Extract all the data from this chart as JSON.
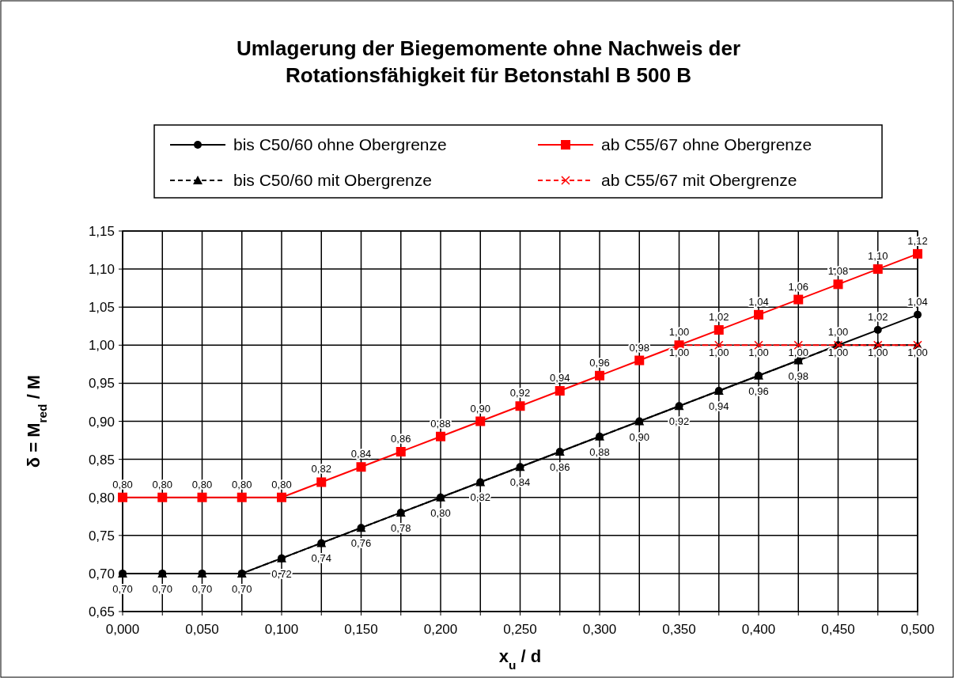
{
  "chart_data": {
    "type": "line",
    "title": "Umlagerung der Biegemomente ohne Nachweis der Rotationsfähigkeit für Betonstahl B 500 B",
    "xlabel": "x$_{u}$ / d",
    "ylabel": "δ = M$_{red}$ / M",
    "x": [
      0,
      0.025,
      0.05,
      0.075,
      0.1,
      0.125,
      0.15,
      0.175,
      0.2,
      0.225,
      0.25,
      0.275,
      0.3,
      0.325,
      0.35,
      0.375,
      0.4,
      0.425,
      0.45,
      0.475,
      0.5
    ],
    "series": [
      {
        "name": "bis C50/60 ohne Obergrenze",
        "color": "#000000",
        "marker": "circle",
        "line_style": "solid",
        "values": [
          0.7,
          0.7,
          0.7,
          0.7,
          0.72,
          0.74,
          0.76,
          0.78,
          0.8,
          0.82,
          0.84,
          0.86,
          0.88,
          0.9,
          0.92,
          0.94,
          0.96,
          0.98,
          1.0,
          1.02,
          1.04
        ],
        "value_labels": [
          "0,70",
          "0,70",
          "0,70",
          "0,70",
          "0,72",
          "0,74",
          "0,76",
          "0,78",
          "0,80",
          "0,82",
          "0,84",
          "0,86",
          "0,88",
          "0,90",
          "0,92",
          "0,94",
          "0,96",
          "0,98",
          "1,00",
          "1,02",
          "1,04"
        ]
      },
      {
        "name": "ab C55/67 ohne Obergrenze",
        "color": "#ff0000",
        "marker": "square",
        "line_style": "solid",
        "values": [
          0.8,
          0.8,
          0.8,
          0.8,
          0.8,
          0.82,
          0.84,
          0.86,
          0.88,
          0.9,
          0.92,
          0.94,
          0.96,
          0.98,
          1.0,
          1.02,
          1.04,
          1.06,
          1.08,
          1.1,
          1.12
        ],
        "value_labels": [
          "0,80",
          "0,80",
          "0,80",
          "0,80",
          "0,80",
          "0,82",
          "0,84",
          "0,86",
          "0,88",
          "0,90",
          "0,92",
          "0,94",
          "0,96",
          "0,98",
          "1,00",
          "1,02",
          "1,04",
          "1,06",
          "1,08",
          "1,10",
          "1,12"
        ]
      },
      {
        "name": "bis C50/60 mit Obergrenze",
        "color": "#000000",
        "marker": "triangle",
        "line_style": "dashed",
        "values": [
          0.7,
          0.7,
          0.7,
          0.7,
          0.72,
          0.74,
          0.76,
          0.78,
          0.8,
          0.82,
          0.84,
          0.86,
          0.88,
          0.9,
          0.92,
          0.94,
          0.96,
          0.98,
          1.0,
          1.0,
          1.0
        ]
      },
      {
        "name": "ab C55/67 mit Obergrenze",
        "color": "#ff0000",
        "marker": "cross",
        "line_style": "dashed",
        "values": [
          null,
          null,
          null,
          null,
          null,
          null,
          null,
          null,
          null,
          null,
          null,
          null,
          null,
          null,
          1.0,
          1.0,
          1.0,
          1.0,
          1.0,
          1.0,
          1.0
        ],
        "value_labels": [
          null,
          null,
          null,
          null,
          null,
          null,
          null,
          null,
          null,
          null,
          null,
          null,
          null,
          null,
          "1,00",
          "1,00",
          "1,00",
          "1,00",
          "1,00",
          "1,00",
          "1,00"
        ]
      }
    ],
    "xlim": [
      0,
      0.5
    ],
    "xticks": [
      {
        "value": 0,
        "label": "0,000"
      },
      {
        "value": 0.025,
        "label": null
      },
      {
        "value": 0.05,
        "label": "0,050"
      },
      {
        "value": 0.075,
        "label": null
      },
      {
        "value": 0.1,
        "label": "0,100"
      },
      {
        "value": 0.125,
        "label": null
      },
      {
        "value": 0.15,
        "label": "0,150"
      },
      {
        "value": 0.175,
        "label": null
      },
      {
        "value": 0.2,
        "label": "0,200"
      },
      {
        "value": 0.225,
        "label": null
      },
      {
        "value": 0.25,
        "label": "0,250"
      },
      {
        "value": 0.275,
        "label": null
      },
      {
        "value": 0.3,
        "label": "0,300"
      },
      {
        "value": 0.325,
        "label": null
      },
      {
        "value": 0.35,
        "label": "0,350"
      },
      {
        "value": 0.375,
        "label": null
      },
      {
        "value": 0.4,
        "label": "0,400"
      },
      {
        "value": 0.425,
        "label": null
      },
      {
        "value": 0.45,
        "label": "0,450"
      },
      {
        "value": 0.475,
        "label": null
      },
      {
        "value": 0.5,
        "label": "0,500"
      }
    ],
    "ylim": [
      0.65,
      1.15
    ],
    "yticks": [
      {
        "value": 0.65,
        "label": "0,65"
      },
      {
        "value": 0.7,
        "label": "0,70"
      },
      {
        "value": 0.75,
        "label": "0,75"
      },
      {
        "value": 0.8,
        "label": "0,80"
      },
      {
        "value": 0.85,
        "label": "0,85"
      },
      {
        "value": 0.9,
        "label": "0,90"
      },
      {
        "value": 0.95,
        "label": "0,95"
      },
      {
        "value": 1.0,
        "label": "1,00"
      },
      {
        "value": 1.05,
        "label": "1,05"
      },
      {
        "value": 1.1,
        "label": "1,10"
      },
      {
        "value": 1.15,
        "label": "1,15"
      }
    ],
    "grid": true,
    "legend": "top"
  }
}
